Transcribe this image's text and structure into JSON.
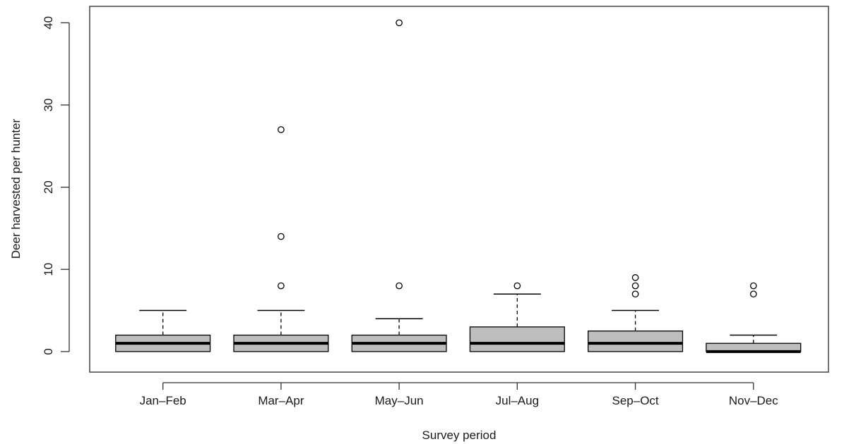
{
  "chart_data": {
    "type": "boxplot",
    "title": "",
    "xlabel": "Survey period",
    "ylabel": "Deer harvested per hunter",
    "ylim": [
      -2.5,
      42
    ],
    "yticks": [
      0,
      10,
      20,
      30,
      40
    ],
    "grid": false,
    "colors": {
      "box_fill": "#bebebe",
      "stroke": "#000000",
      "frame": "#444444"
    },
    "categories": [
      "Jan–Feb",
      "Mar–Apr",
      "May–Jun",
      "Jul–Aug",
      "Sep–Oct",
      "Nov–Dec"
    ],
    "boxes": [
      {
        "label": "Jan–Feb",
        "whisker_low": 0,
        "q1": 0,
        "median": 1,
        "q3": 2,
        "whisker_high": 5,
        "outliers": []
      },
      {
        "label": "Mar–Apr",
        "whisker_low": 0,
        "q1": 0,
        "median": 1,
        "q3": 2,
        "whisker_high": 5,
        "outliers": [
          8,
          14,
          27
        ]
      },
      {
        "label": "May–Jun",
        "whisker_low": 0,
        "q1": 0,
        "median": 1,
        "q3": 2,
        "whisker_high": 4,
        "outliers": [
          8,
          40
        ]
      },
      {
        "label": "Jul–Aug",
        "whisker_low": 0,
        "q1": 0,
        "median": 1,
        "q3": 3,
        "whisker_high": 7,
        "outliers": [
          8
        ]
      },
      {
        "label": "Sep–Oct",
        "whisker_low": 0,
        "q1": 0,
        "median": 1,
        "q3": 2.5,
        "whisker_high": 5,
        "outliers": [
          7,
          8,
          9
        ]
      },
      {
        "label": "Nov–Dec",
        "whisker_low": 0,
        "q1": 0,
        "median": 0,
        "q3": 1,
        "whisker_high": 2,
        "outliers": [
          7,
          8
        ]
      }
    ]
  }
}
